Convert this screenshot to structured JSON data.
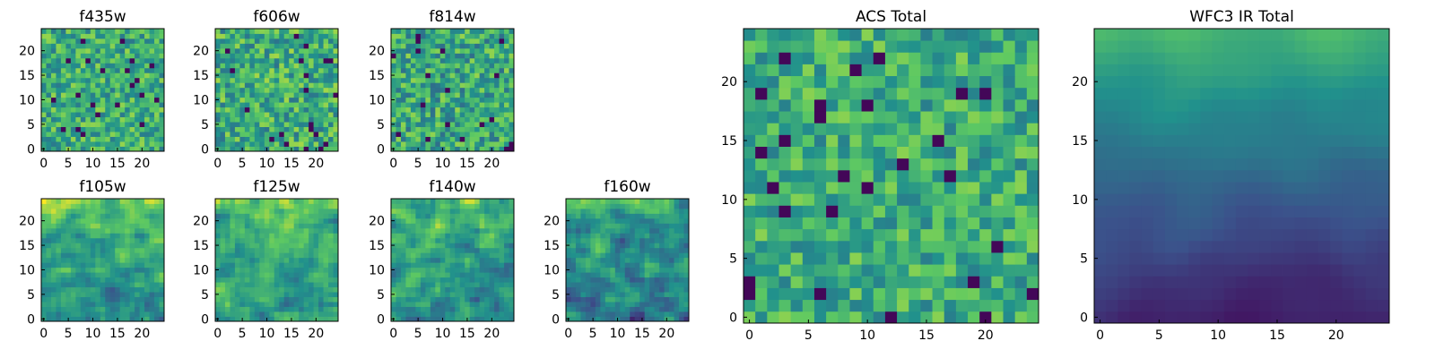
{
  "figure": {
    "description_colormap": "viridis",
    "colormap_stops": [
      "#440154",
      "#3b528b",
      "#21918c",
      "#5ec962",
      "#fde725"
    ]
  },
  "chart_data": [
    {
      "id": "f435w",
      "type": "heatmap",
      "title": "f435w",
      "grid": [
        25,
        25
      ],
      "xlim": [
        -0.5,
        24.5
      ],
      "ylim": [
        -0.5,
        24.5
      ],
      "xticks": [
        0,
        5,
        10,
        15,
        20
      ],
      "yticks": [
        0,
        5,
        10,
        15,
        20
      ],
      "pattern": "noise",
      "mean": 0.62,
      "spread": 0.22,
      "gradient": 0.0
    },
    {
      "id": "f606w",
      "type": "heatmap",
      "title": "f606w",
      "grid": [
        25,
        25
      ],
      "xlim": [
        -0.5,
        24.5
      ],
      "ylim": [
        -0.5,
        24.5
      ],
      "xticks": [
        0,
        5,
        10,
        15,
        20
      ],
      "yticks": [
        0,
        5,
        10,
        15,
        20
      ],
      "pattern": "noise",
      "mean": 0.62,
      "spread": 0.24,
      "gradient": 0.0
    },
    {
      "id": "f814w",
      "type": "heatmap",
      "title": "f814w",
      "grid": [
        25,
        25
      ],
      "xlim": [
        -0.5,
        24.5
      ],
      "ylim": [
        -0.5,
        24.5
      ],
      "xticks": [
        0,
        5,
        10,
        15,
        20
      ],
      "yticks": [
        0,
        5,
        10,
        15,
        20
      ],
      "pattern": "noise",
      "mean": 0.6,
      "spread": 0.24,
      "gradient": 0.0
    },
    {
      "id": "f105w",
      "type": "heatmap",
      "title": "f105w",
      "grid": [
        25,
        25
      ],
      "xlim": [
        -0.5,
        24.5
      ],
      "ylim": [
        -0.5,
        24.5
      ],
      "xticks": [
        0,
        5,
        10,
        15,
        20
      ],
      "yticks": [
        0,
        5,
        10,
        15,
        20
      ],
      "pattern": "smooth",
      "mean": 0.58,
      "spread": 0.2,
      "gradient": 0.25
    },
    {
      "id": "f125w",
      "type": "heatmap",
      "title": "f125w",
      "grid": [
        25,
        25
      ],
      "xlim": [
        -0.5,
        24.5
      ],
      "ylim": [
        -0.5,
        24.5
      ],
      "xticks": [
        0,
        5,
        10,
        15,
        20
      ],
      "yticks": [
        0,
        5,
        10,
        15,
        20
      ],
      "pattern": "smooth",
      "mean": 0.6,
      "spread": 0.2,
      "gradient": 0.15
    },
    {
      "id": "f140w",
      "type": "heatmap",
      "title": "f140w",
      "grid": [
        25,
        25
      ],
      "xlim": [
        -0.5,
        24.5
      ],
      "ylim": [
        -0.5,
        24.5
      ],
      "xticks": [
        0,
        5,
        10,
        15,
        20
      ],
      "yticks": [
        0,
        5,
        10,
        15,
        20
      ],
      "pattern": "smooth",
      "mean": 0.55,
      "spread": 0.22,
      "gradient": 0.2
    },
    {
      "id": "f160w",
      "type": "heatmap",
      "title": "f160w",
      "grid": [
        25,
        25
      ],
      "xlim": [
        -0.5,
        24.5
      ],
      "ylim": [
        -0.5,
        24.5
      ],
      "xticks": [
        0,
        5,
        10,
        15,
        20
      ],
      "yticks": [
        0,
        5,
        10,
        15,
        20
      ],
      "pattern": "smooth",
      "mean": 0.45,
      "spread": 0.22,
      "gradient": 0.25
    },
    {
      "id": "acs_total",
      "type": "heatmap",
      "title": "ACS Total",
      "grid": [
        25,
        25
      ],
      "xlim": [
        -0.5,
        24.5
      ],
      "ylim": [
        -0.5,
        24.5
      ],
      "xticks": [
        0,
        5,
        10,
        15,
        20
      ],
      "yticks": [
        0,
        5,
        10,
        15,
        20
      ],
      "pattern": "noise",
      "mean": 0.62,
      "spread": 0.2,
      "gradient": 0.0
    },
    {
      "id": "wfc3_ir_total",
      "type": "heatmap",
      "title": "WFC3 IR Total",
      "grid": [
        25,
        25
      ],
      "xlim": [
        -0.5,
        24.5
      ],
      "ylim": [
        -0.5,
        24.5
      ],
      "xticks": [
        0,
        5,
        10,
        15,
        20
      ],
      "yticks": [
        0,
        5,
        10,
        15,
        20
      ],
      "pattern": "gradient",
      "mean": 0.35,
      "spread": 0.08,
      "gradient": 0.55
    }
  ]
}
